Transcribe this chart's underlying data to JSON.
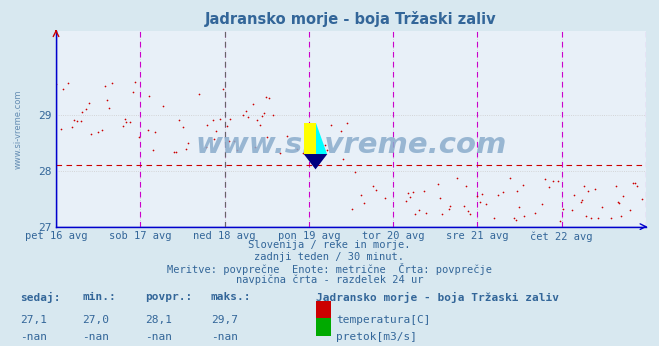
{
  "title": "Jadransko morje - boja Tržaski zaliv",
  "bg_color": "#d8e8f0",
  "plot_bg_color": "#e8f0f8",
  "y_axis_min": 27.0,
  "y_axis_max": 30.5,
  "y_ticks": [
    27,
    28,
    29
  ],
  "x_labels": [
    "pet 16 avg",
    "sob 17 avg",
    "ned 18 avg",
    "pon 19 avg",
    "tor 20 avg",
    "sre 21 avg",
    "čet 22 avg"
  ],
  "avg_line_value": 28.1,
  "avg_line_color": "#cc0000",
  "temp_color": "#cc0000",
  "flow_color": "#00aa00",
  "vertical_line_color_magenta": "#cc00cc",
  "vertical_line_color_dark": "#666666",
  "grid_color": "#cccccc",
  "spine_color": "#0000cc",
  "text_color": "#336699",
  "subtitle_lines": [
    "Slovenija / reke in morje.",
    "zadnji teden / 30 minut.",
    "Meritve: povprečne  Enote: metrične  Črta: povprečje",
    "navpična črta - razdelek 24 ur"
  ],
  "legend_title": "Jadransko morje - boja Tržaski zaliv",
  "legend_items": [
    {
      "label": "temperatura[C]",
      "color": "#cc0000"
    },
    {
      "label": "pretok[m3/s]",
      "color": "#00aa00"
    }
  ],
  "stats_headers": [
    "sedaj:",
    "min.:",
    "povpr.:",
    "maks.:"
  ],
  "stats_temp": [
    "27,1",
    "27,0",
    "28,1",
    "29,7"
  ],
  "stats_flow": [
    "-nan",
    "-nan",
    "-nan",
    "-nan"
  ],
  "watermark": "www.si-vreme.com",
  "n_days": 7,
  "points_per_day": 48,
  "seed": 42
}
